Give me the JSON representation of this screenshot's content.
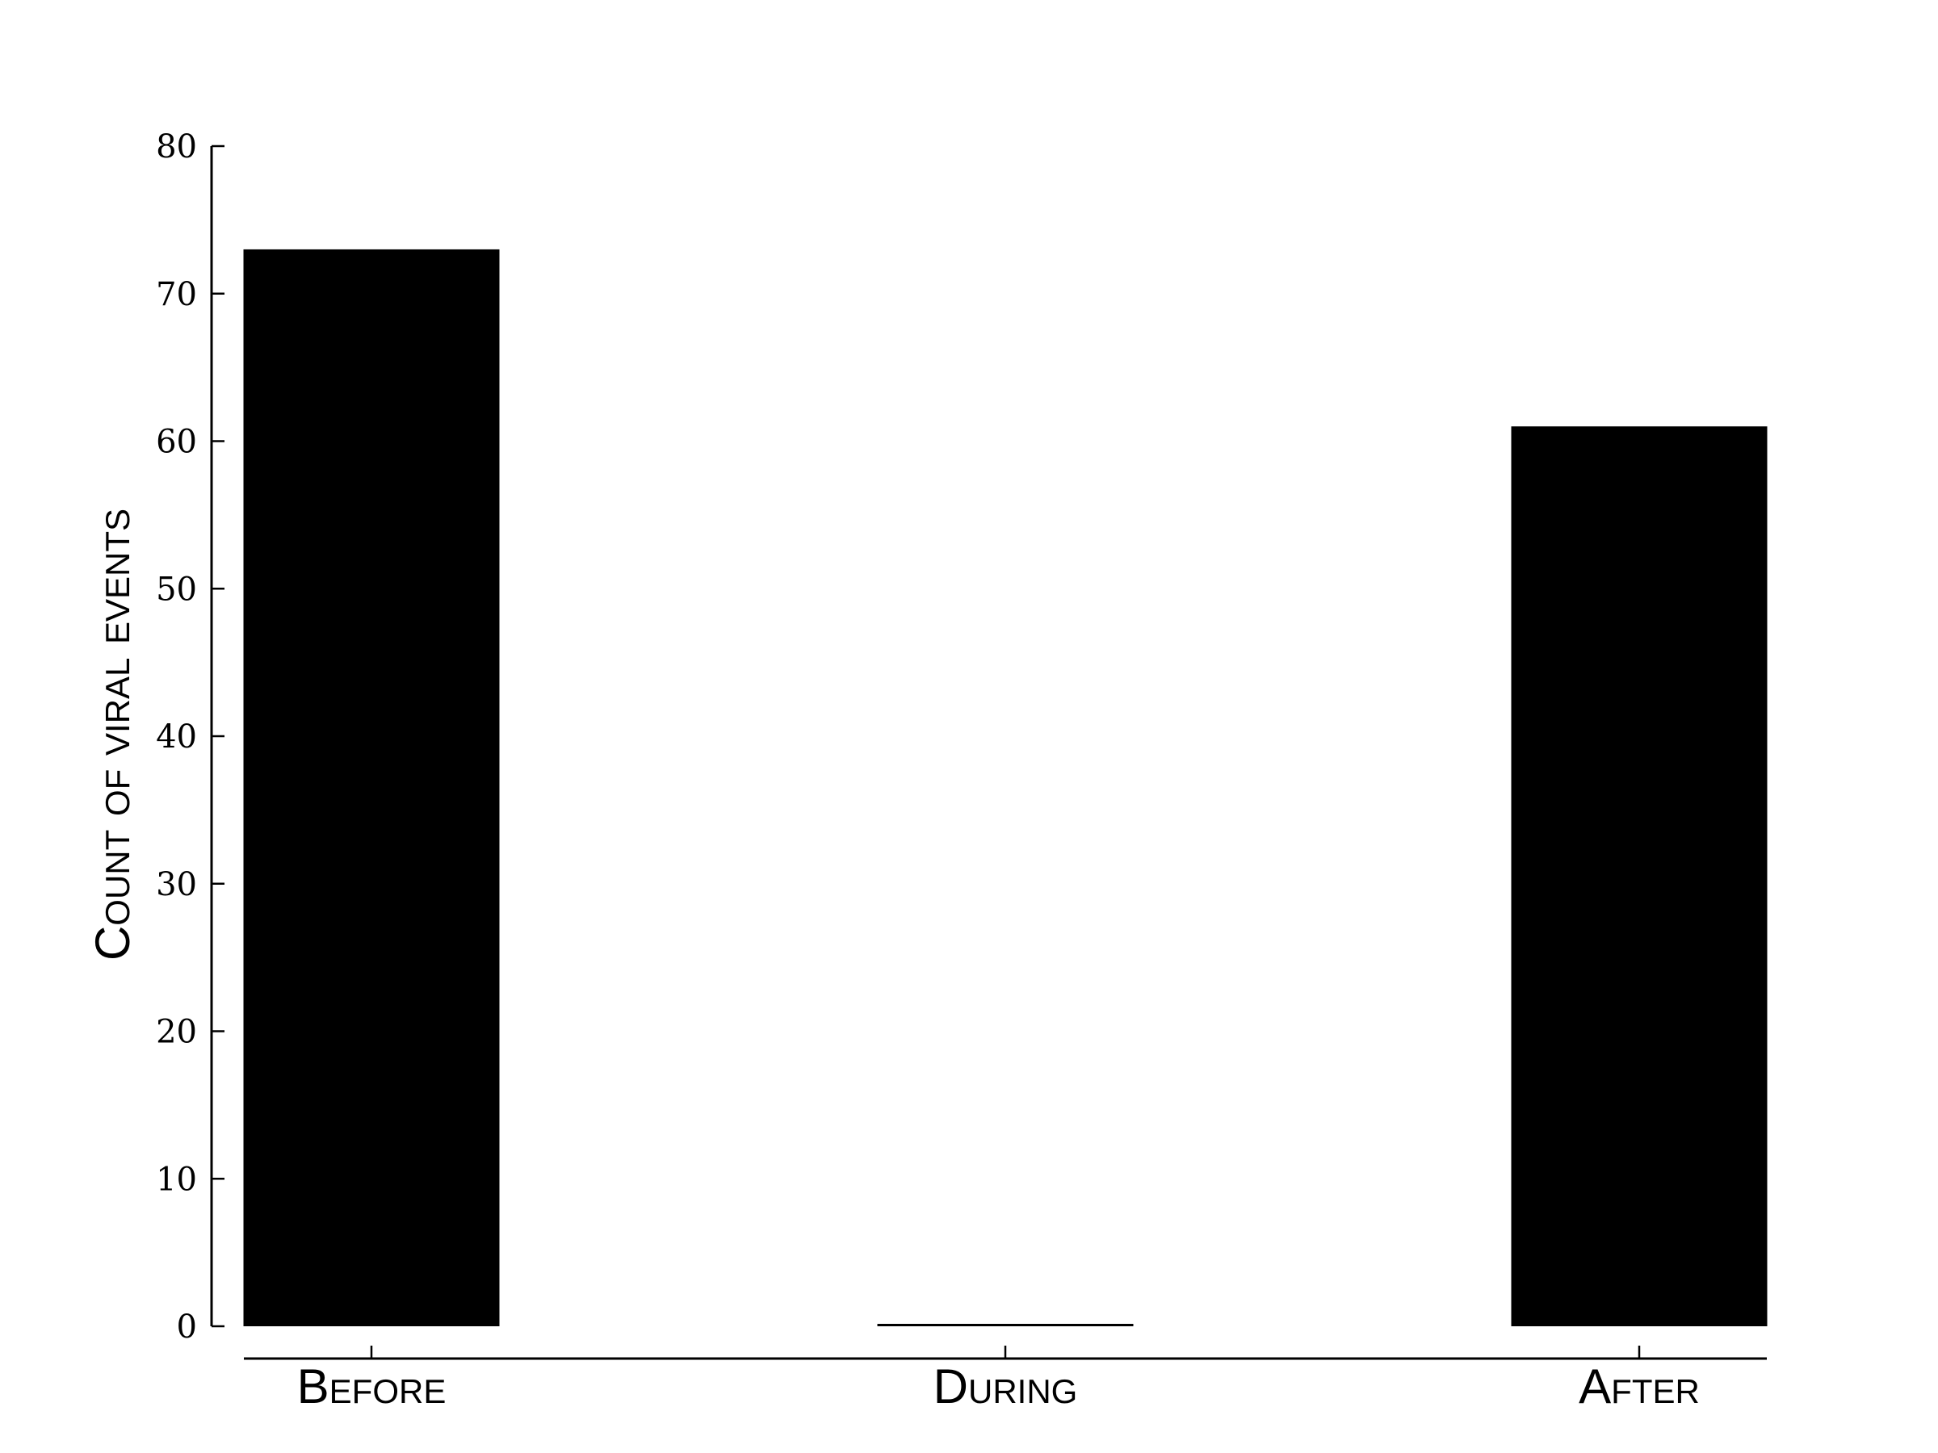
{
  "chart_data": {
    "type": "bar",
    "categories": [
      "Before",
      "During",
      "After"
    ],
    "values": [
      73,
      0,
      61
    ],
    "title": "",
    "xlabel": "",
    "ylabel": "Count of viral events",
    "ylim": [
      0,
      80
    ],
    "yticks": [
      0,
      10,
      20,
      30,
      40,
      50,
      60,
      70,
      80
    ],
    "grid": false,
    "legend": "none",
    "bar_color": "#000000"
  }
}
